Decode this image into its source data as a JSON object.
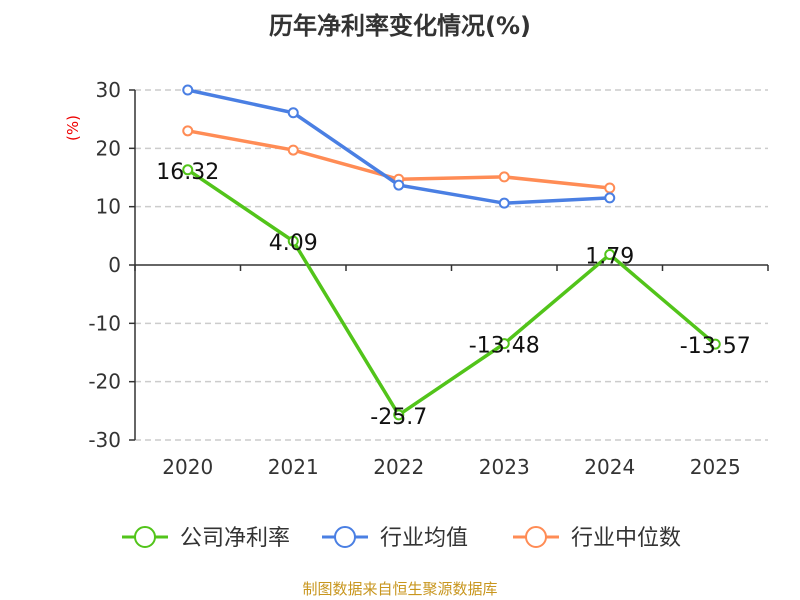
{
  "chart_data": {
    "type": "line",
    "title": "历年净利率变化情况(%)",
    "ylabel": "(%)",
    "xlabel": "",
    "categories": [
      "2020",
      "2021",
      "2022",
      "2023",
      "2024",
      "2025"
    ],
    "ylim": [
      -30,
      30
    ],
    "yticks": [
      30,
      20,
      10,
      0,
      -10,
      -20,
      -30
    ],
    "grid": true,
    "legend_position": "bottom",
    "series": [
      {
        "name": "公司净利率",
        "color": "#52c41a",
        "values": [
          16.32,
          4.09,
          -25.7,
          -13.48,
          1.79,
          -13.57
        ],
        "labels": [
          "16.32",
          "4.09",
          "-25.7",
          "-13.48",
          "1.79",
          "-13.57"
        ]
      },
      {
        "name": "行业均值",
        "color": "#4a7fe3",
        "values": [
          30.0,
          26.1,
          13.7,
          10.6,
          11.5,
          null
        ]
      },
      {
        "name": "行业中位数",
        "color": "#ff8c55",
        "values": [
          23.0,
          19.7,
          14.7,
          15.1,
          13.2,
          null
        ]
      }
    ]
  },
  "footer": "制图数据来自恒生聚源数据库"
}
